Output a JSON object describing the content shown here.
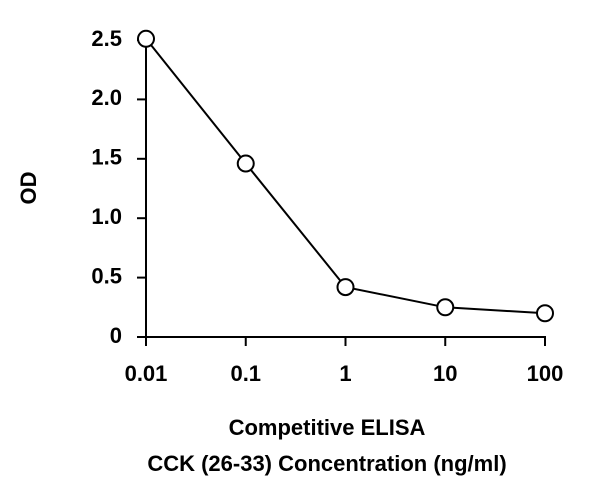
{
  "chart_data": {
    "type": "line",
    "x": [
      0.01,
      0.1,
      1,
      10,
      100
    ],
    "values": [
      2.51,
      1.46,
      0.42,
      0.25,
      0.2
    ],
    "color": "#000000",
    "marker_fill": "#ffffff",
    "xscale": "log",
    "xlim": [
      0.01,
      100
    ],
    "xticks": [
      0.01,
      0.1,
      1,
      10,
      100
    ],
    "ylim": [
      0,
      2.5
    ],
    "yticks": [
      0,
      0.5,
      {
        "value": 1,
        "label": "1.0"
      },
      1.5,
      {
        "value": 2,
        "label": "2.0"
      },
      2.5
    ],
    "y_label": "OD",
    "x_label": [
      "Competitive ELISA",
      "CCK (26-33) Concentration (ng/ml)"
    ],
    "grid": false
  }
}
